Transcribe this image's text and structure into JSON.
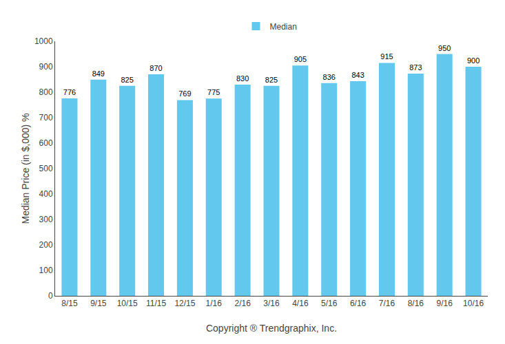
{
  "chart_data": {
    "type": "bar",
    "categories": [
      "8/15",
      "9/15",
      "10/15",
      "11/15",
      "12/15",
      "1/16",
      "2/16",
      "3/16",
      "4/16",
      "5/16",
      "6/16",
      "7/16",
      "8/16",
      "9/16",
      "10/16"
    ],
    "series": [
      {
        "name": "Median",
        "color": "#62C8EE",
        "values": [
          776,
          849,
          825,
          870,
          769,
          775,
          830,
          825,
          905,
          836,
          843,
          915,
          873,
          950,
          900
        ]
      }
    ],
    "ylabel": "Median Price (in $,000) %",
    "xlabel": "Copyright ® Trendgraphix, Inc.",
    "ylim": [
      0,
      1000
    ],
    "yticks": [
      0,
      100,
      200,
      300,
      400,
      500,
      600,
      700,
      800,
      900,
      1000
    ],
    "grid": false,
    "legend": "top",
    "data_labels": true
  }
}
